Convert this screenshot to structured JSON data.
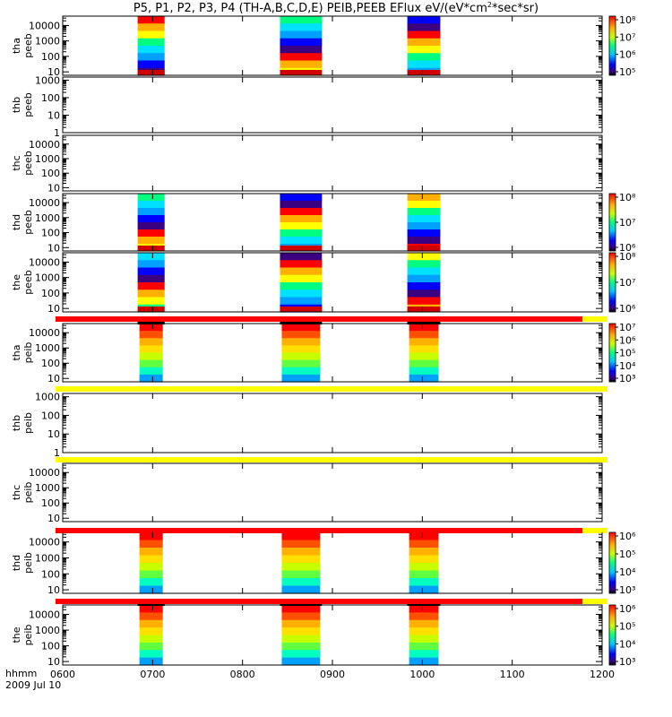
{
  "title_main": "P5, P1, P2, P3, P4 (TH-A,B,C,D,E) PEIB,PEEB EFlux eV/(eV*cm",
  "title_sup": "2",
  "title_tail": "*sec*sr)",
  "xaxis": {
    "label_top": "hhmm",
    "label_bottom": "2009 Jul 10",
    "ticks": [
      "0600",
      "0700",
      "0800",
      "0900",
      "1000",
      "1100",
      "1200"
    ]
  },
  "chart_data": {
    "type": "heatmap",
    "x_range": [
      "0600",
      "1200"
    ],
    "intervals": [
      {
        "start": "0650",
        "end": "0708"
      },
      {
        "start": "0825",
        "end": "0853"
      },
      {
        "start": "0950",
        "end": "1012"
      }
    ],
    "panels": [
      {
        "name": "thapeeb",
        "line1": "tha",
        "line2": "peeb",
        "yticks": [
          "10",
          "100",
          "1000",
          "10000"
        ],
        "y_range": [
          6,
          40000
        ],
        "has_data": true,
        "colorbar_labels": [
          "10⁵",
          "10⁶",
          "10⁷",
          "10⁸"
        ]
      },
      {
        "name": "thbpeeb",
        "line1": "thb",
        "line2": "peeb",
        "yticks": [
          "1",
          "10",
          "100",
          "1000"
        ],
        "y_range": [
          1,
          1500
        ],
        "has_data": false
      },
      {
        "name": "thcpeeb",
        "line1": "thc",
        "line2": "peeb",
        "yticks": [
          "10",
          "100",
          "1000",
          "10000"
        ],
        "y_range": [
          6,
          40000
        ],
        "has_data": false
      },
      {
        "name": "thdpeeb",
        "line1": "thd",
        "line2": "peeb",
        "yticks": [
          "10",
          "100",
          "1000",
          "10000"
        ],
        "y_range": [
          6,
          40000
        ],
        "has_data": true,
        "colorbar_labels": [
          "10⁶",
          "10⁷",
          "10⁸"
        ]
      },
      {
        "name": "thepeeb",
        "line1": "the",
        "line2": "peeb",
        "yticks": [
          "10",
          "100",
          "1000",
          "10000"
        ],
        "y_range": [
          6,
          40000
        ],
        "has_data": true,
        "colorbar_labels": [
          "10⁶",
          "10⁷",
          "10⁸"
        ]
      },
      {
        "name": "thapeib",
        "line1": "tha",
        "line2": "peib",
        "yticks": [
          "10",
          "100",
          "1000",
          "10000"
        ],
        "y_range": [
          6,
          40000
        ],
        "has_data": true,
        "colorbar_labels": [
          "10³",
          "10⁴",
          "10⁵",
          "10⁶",
          "10⁷"
        ]
      },
      {
        "name": "thbpeib",
        "line1": "thb",
        "line2": "peib",
        "yticks": [
          "1",
          "10",
          "100",
          "1000"
        ],
        "y_range": [
          1,
          1500
        ],
        "has_data": false
      },
      {
        "name": "thcpeib",
        "line1": "thc",
        "line2": "peib",
        "yticks": [
          "10",
          "100",
          "1000",
          "10000"
        ],
        "y_range": [
          6,
          40000
        ],
        "has_data": false
      },
      {
        "name": "thdpeib",
        "line1": "thd",
        "line2": "peib",
        "yticks": [
          "10",
          "100",
          "1000",
          "10000"
        ],
        "y_range": [
          6,
          40000
        ],
        "has_data": true,
        "colorbar_labels": [
          "10³",
          "10⁴",
          "10⁵",
          "10⁶"
        ]
      },
      {
        "name": "thepeib",
        "line1": "the",
        "line2": "peib",
        "yticks": [
          "10",
          "100",
          "1000",
          "10000"
        ],
        "y_range": [
          6,
          40000
        ],
        "has_data": true,
        "colorbar_labels": [
          "10³",
          "10⁴",
          "10⁵",
          "10⁶"
        ]
      }
    ],
    "status_bars": [
      {
        "name": "status-bar-1",
        "segments": [
          {
            "color": "#ff0000",
            "from": "0600",
            "to": "1147"
          },
          {
            "color": "#ffff00",
            "from": "1147",
            "to": "1200"
          }
        ]
      },
      {
        "name": "status-bar-2",
        "segments": [
          {
            "color": "#ffff00",
            "from": "0600",
            "to": "1200"
          }
        ]
      },
      {
        "name": "status-bar-3",
        "segments": [
          {
            "color": "#ffff00",
            "from": "0600",
            "to": "1200"
          }
        ]
      },
      {
        "name": "status-bar-4",
        "segments": [
          {
            "color": "#ff0000",
            "from": "0600",
            "to": "1147"
          },
          {
            "color": "#ffff00",
            "from": "1147",
            "to": "1200"
          }
        ]
      },
      {
        "name": "status-bar-5",
        "segments": [
          {
            "color": "#ff0000",
            "from": "0600",
            "to": "1147"
          },
          {
            "color": "#ffff00",
            "from": "1147",
            "to": "1200"
          }
        ]
      }
    ]
  }
}
